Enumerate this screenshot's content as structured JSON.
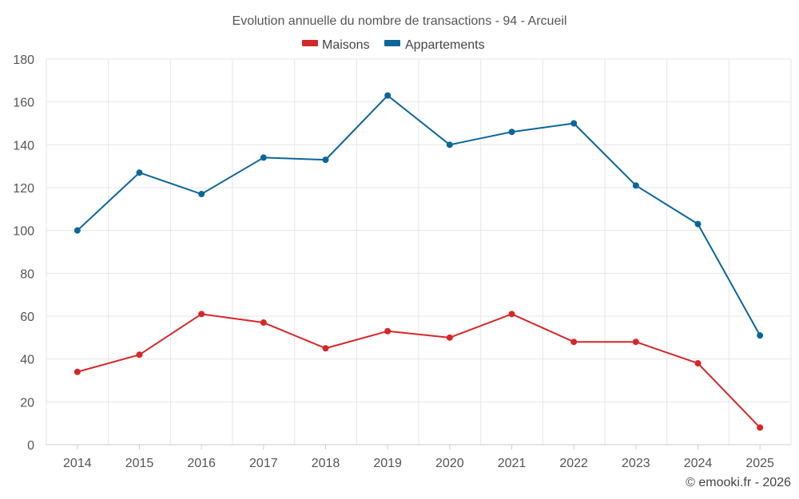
{
  "chart_data": {
    "type": "line",
    "title": "Evolution annuelle du nombre de transactions - 94 - Arcueil",
    "xlabel": "",
    "ylabel": "",
    "categories": [
      "2014",
      "2015",
      "2016",
      "2017",
      "2018",
      "2019",
      "2020",
      "2021",
      "2022",
      "2023",
      "2024",
      "2025"
    ],
    "ylim": [
      0,
      180
    ],
    "yticks": [
      0,
      20,
      40,
      60,
      80,
      100,
      120,
      140,
      160,
      180
    ],
    "grid": true,
    "legend_position": "top-center",
    "series": [
      {
        "name": "Maisons",
        "color": "#d62728",
        "values": [
          34,
          42,
          61,
          57,
          45,
          53,
          50,
          61,
          48,
          48,
          38,
          8
        ]
      },
      {
        "name": "Appartements",
        "color": "#0a6699",
        "values": [
          100,
          127,
          117,
          134,
          133,
          163,
          140,
          146,
          150,
          121,
          103,
          51
        ]
      }
    ]
  },
  "credit": "© emooki.fr - 2026"
}
